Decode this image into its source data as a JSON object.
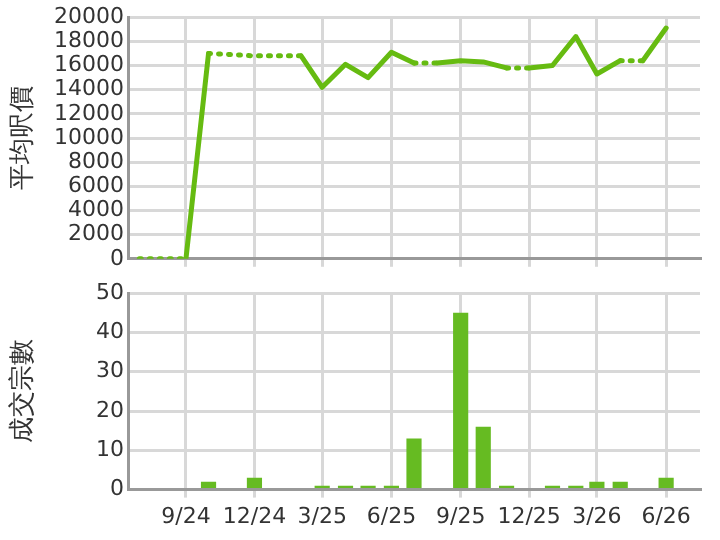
{
  "chart_data": [
    {
      "type": "line",
      "ylabel": "平均呎價",
      "xlim": [
        "2024-06-16",
        "2026-07-16"
      ],
      "xticks": [
        {
          "value": "2024-09",
          "label": null
        },
        {
          "value": "2024-12",
          "label": null
        },
        {
          "value": "2025-03",
          "label": null
        },
        {
          "value": "2025-06",
          "label": null
        },
        {
          "value": "2025-09",
          "label": null
        },
        {
          "value": "2025-12",
          "label": null
        },
        {
          "value": "2026-03",
          "label": null
        },
        {
          "value": "2026-06",
          "label": null
        }
      ],
      "ylim": [
        0,
        20000
      ],
      "yticks": [
        0,
        2000,
        4000,
        6000,
        8000,
        10000,
        12000,
        14000,
        16000,
        18000,
        20000
      ],
      "grid": true,
      "tick_labels": "y",
      "series": [
        {
          "color": "#66bb11",
          "line_style": "dotted",
          "x": [
            "2024-07",
            "2024-08",
            "2024-09"
          ],
          "values": [
            0,
            0,
            0
          ]
        },
        {
          "color": "#66bb11",
          "line_style": "solid",
          "x": [
            "2024-09",
            "2024-10"
          ],
          "values": [
            0,
            17000
          ]
        },
        {
          "color": "#66bb11",
          "line_style": "dotted",
          "x": [
            "2024-10",
            "2024-11",
            "2024-12",
            "2025-01",
            "2025-02"
          ],
          "values": [
            17000,
            16900,
            16800,
            16800,
            16800
          ]
        },
        {
          "color": "#66bb11",
          "line_style": "solid",
          "x": [
            "2025-02",
            "2025-03",
            "2025-04",
            "2025-05",
            "2025-06",
            "2025-07"
          ],
          "values": [
            16800,
            14200,
            16100,
            15000,
            17100,
            16200
          ]
        },
        {
          "color": "#66bb11",
          "line_style": "dotted",
          "x": [
            "2025-07",
            "2025-08"
          ],
          "values": [
            16200,
            16200
          ]
        },
        {
          "color": "#66bb11",
          "line_style": "solid",
          "x": [
            "2025-08",
            "2025-09",
            "2025-10",
            "2025-11"
          ],
          "values": [
            16200,
            16400,
            16300,
            15800
          ]
        },
        {
          "color": "#66bb11",
          "line_style": "dotted",
          "x": [
            "2025-11",
            "2025-12"
          ],
          "values": [
            15800,
            15800
          ]
        },
        {
          "color": "#66bb11",
          "line_style": "solid",
          "x": [
            "2025-12",
            "2026-01",
            "2026-02",
            "2026-03",
            "2026-04"
          ],
          "values": [
            15800,
            16000,
            18400,
            15300,
            16400
          ]
        },
        {
          "color": "#66bb11",
          "line_style": "dotted",
          "x": [
            "2026-04",
            "2026-05"
          ],
          "values": [
            16400,
            16400
          ]
        },
        {
          "color": "#66bb11",
          "line_style": "solid",
          "x": [
            "2026-05",
            "2026-06"
          ],
          "values": [
            16400,
            19100
          ]
        }
      ]
    },
    {
      "type": "bar",
      "ylabel": "成交宗數",
      "xlim": [
        "2024-06-16",
        "2026-07-16"
      ],
      "xticks": [
        {
          "value": "2024-09",
          "label": "9/24"
        },
        {
          "value": "2024-12",
          "label": "12/24"
        },
        {
          "value": "2025-03",
          "label": "3/25"
        },
        {
          "value": "2025-06",
          "label": "6/25"
        },
        {
          "value": "2025-09",
          "label": "9/25"
        },
        {
          "value": "2025-12",
          "label": "12/25"
        },
        {
          "value": "2026-03",
          "label": "3/26"
        },
        {
          "value": "2026-06",
          "label": "6/26"
        }
      ],
      "ylim": [
        0,
        50
      ],
      "yticks": [
        0,
        10,
        20,
        30,
        40,
        50
      ],
      "grid": true,
      "x": [
        "2024-10",
        "2024-12",
        "2025-03",
        "2025-04",
        "2025-05",
        "2025-06",
        "2025-07",
        "2025-09",
        "2025-10",
        "2025-11",
        "2026-01",
        "2026-02",
        "2026-03",
        "2026-04",
        "2026-06"
      ],
      "values": [
        2,
        3,
        1,
        1,
        1,
        1,
        13,
        45,
        16,
        1,
        1,
        1,
        2,
        2,
        3
      ],
      "color": "#66bb22"
    }
  ]
}
